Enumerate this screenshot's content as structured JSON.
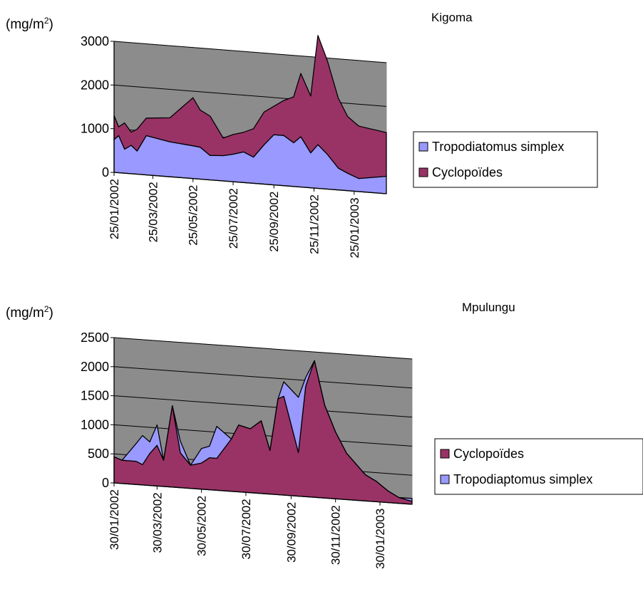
{
  "chart_data": [
    {
      "type": "area",
      "title": "Kigoma",
      "ylabel": "(mg/m",
      "ylabel_sup": "2",
      "ylabel_tail": ")",
      "ylim": [
        0,
        3000
      ],
      "yticks": [
        0,
        1000,
        2000,
        3000
      ],
      "grid": true,
      "legend_position": "right",
      "xticks": [
        "25/01/2002",
        "25/03/2002",
        "25/05/2002",
        "25/07/2002",
        "25/09/2002",
        "25/11/2002",
        "25/01/2003"
      ],
      "x_range": [
        "2002-01-25",
        "2003-03-15"
      ],
      "x": [
        "2002-01-25",
        "2002-02-01",
        "2002-02-10",
        "2002-02-20",
        "2002-03-01",
        "2002-03-15",
        "2002-04-20",
        "2002-05-25",
        "2002-06-05",
        "2002-06-20",
        "2002-07-10",
        "2002-07-25",
        "2002-08-10",
        "2002-08-25",
        "2002-09-10",
        "2002-09-25",
        "2002-10-10",
        "2002-10-25",
        "2002-11-05",
        "2002-11-20",
        "2002-12-01",
        "2002-12-15",
        "2003-01-01",
        "2003-01-15",
        "2003-02-01",
        "2003-03-15"
      ],
      "series": [
        {
          "name": "Tropodiatomus simplex",
          "color": "#9999ff",
          "values": [
            750,
            850,
            550,
            650,
            530,
            900,
            800,
            750,
            730,
            560,
            580,
            630,
            700,
            600,
            900,
            1150,
            1150,
            1000,
            1150,
            800,
            1000,
            800,
            500,
            400,
            300,
            400
          ]
        },
        {
          "name": "Cyclopoïdes",
          "color": "#993366",
          "values": [
            550,
            200,
            600,
            300,
            500,
            400,
            550,
            1100,
            850,
            900,
            400,
            450,
            450,
            650,
            750,
            650,
            800,
            1050,
            1450,
            1300,
            2500,
            2150,
            1600,
            1300,
            1200,
            1000
          ]
        }
      ]
    },
    {
      "type": "area",
      "title": "Mpulungu",
      "ylabel": "(mg/m",
      "ylabel_sup": "2",
      "ylabel_tail": ")",
      "ylim": [
        0,
        2500
      ],
      "yticks": [
        0,
        500,
        1000,
        1500,
        2000,
        2500
      ],
      "grid": true,
      "legend_position": "right",
      "xticks": [
        "30/01/2002",
        "30/03/2002",
        "30/05/2002",
        "30/07/2002",
        "30/09/2002",
        "30/11/2002",
        "30/01/2003"
      ],
      "x_range": [
        "2002-01-30",
        "2003-03-15"
      ],
      "x": [
        "2002-01-30",
        "2002-02-10",
        "2002-03-01",
        "2002-03-10",
        "2002-03-20",
        "2002-03-30",
        "2002-04-08",
        "2002-04-20",
        "2002-05-01",
        "2002-05-15",
        "2002-05-30",
        "2002-06-10",
        "2002-06-20",
        "2002-07-10",
        "2002-07-20",
        "2002-08-05",
        "2002-08-20",
        "2002-09-01",
        "2002-09-12",
        "2002-09-20",
        "2002-10-10",
        "2002-10-20",
        "2002-11-01",
        "2002-11-15",
        "2002-11-30",
        "2002-12-15",
        "2003-01-10",
        "2003-01-25",
        "2003-02-10",
        "2003-02-25",
        "2003-03-15"
      ],
      "series": [
        {
          "name": "Cyclopoïdes",
          "color": "#993366",
          "values": [
            450,
            400,
            400,
            350,
            550,
            700,
            450,
            1400,
            600,
            400,
            450,
            550,
            550,
            900,
            1150,
            1100,
            1250,
            750,
            1650,
            1700,
            750,
            1900,
            2350,
            1600,
            1150,
            800,
            450,
            350,
            200,
            100,
            50
          ]
        },
        {
          "name": "Tropodiaptomus simplex",
          "color": "#9999ff",
          "values": [
            0,
            0,
            300,
            500,
            200,
            350,
            0,
            0,
            200,
            0,
            250,
            200,
            550,
            0,
            0,
            0,
            0,
            0,
            0,
            250,
            950,
            150,
            0,
            0,
            0,
            0,
            0,
            0,
            0,
            0,
            50
          ]
        }
      ]
    }
  ]
}
